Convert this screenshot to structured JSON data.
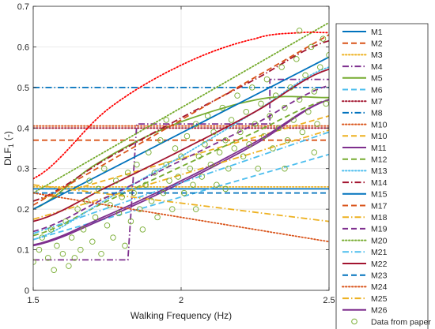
{
  "chart_data": {
    "type": "line",
    "xlabel": "Walking Frequency (Hz)",
    "ylabel_main": "DLF",
    "ylabel_sub": "1",
    "ylabel_unit": "(-)",
    "xlim": [
      1.5,
      2.5
    ],
    "ylim": [
      0,
      0.7
    ],
    "xticks": [
      1.5,
      2,
      2.5
    ],
    "xtick_labels": [
      "1.5",
      "2",
      "2.5"
    ],
    "yticks": [
      0,
      0.1,
      0.2,
      0.3,
      0.4,
      0.5,
      0.6,
      0.7
    ],
    "ytick_labels": [
      "0",
      "0.1",
      "0.2",
      "0.3",
      "0.4",
      "0.5",
      "0.6",
      "0.7"
    ],
    "grid": true,
    "legend_position": "outside-right",
    "series": [
      {
        "name": "M1",
        "color": "#0072BD",
        "style": "solid",
        "x": [
          1.5,
          2.5
        ],
        "y": [
          0.25,
          0.25
        ]
      },
      {
        "name": "M2",
        "color": "#D95319",
        "style": "dash",
        "x": [
          1.5,
          2.5
        ],
        "y": [
          0.37,
          0.37
        ]
      },
      {
        "name": "M3",
        "color": "#EDB120",
        "style": "dot",
        "x": [
          1.5,
          2.5
        ],
        "y": [
          0.255,
          0.255
        ]
      },
      {
        "name": "M4",
        "color": "#7E2F8E",
        "style": "dashdot",
        "x": [
          1.5,
          1.82,
          1.85,
          2.3,
          2.3,
          2.5
        ],
        "y": [
          0.075,
          0.075,
          0.41,
          0.41,
          0.52,
          0.52
        ]
      },
      {
        "name": "M5",
        "color": "#77AC30",
        "style": "solid",
        "x": [
          1.5,
          1.7,
          1.9,
          2.1,
          2.3,
          2.5
        ],
        "y": [
          0.2,
          0.305,
          0.385,
          0.44,
          0.475,
          0.475
        ]
      },
      {
        "name": "M6",
        "color": "#4DBEEE",
        "style": "dash",
        "x": [
          1.5,
          2.5
        ],
        "y": [
          0.125,
          0.335
        ]
      },
      {
        "name": "M7",
        "color": "#A2142F",
        "style": "dot",
        "x": [
          1.5,
          2.5
        ],
        "y": [
          0.4,
          0.4
        ]
      },
      {
        "name": "M8",
        "color": "#0072BD",
        "style": "dashdot",
        "x": [
          1.5,
          2.5
        ],
        "y": [
          0.5,
          0.5
        ]
      },
      {
        "name": "M10",
        "color": "#D95319",
        "style": "dot",
        "x": [
          1.5,
          2.5
        ],
        "y": [
          0.405,
          0.405
        ]
      },
      {
        "name": "M10",
        "color": "#EDB120",
        "style": "dash",
        "x": [
          1.5,
          2.5
        ],
        "y": [
          0.22,
          0.43
        ]
      },
      {
        "name": "M11",
        "color": "#7E2F8E",
        "style": "solid",
        "x": [
          1.5,
          1.75,
          2.0,
          2.25,
          2.5
        ],
        "y": [
          0.11,
          0.18,
          0.265,
          0.36,
          0.47
        ]
      },
      {
        "name": "M12",
        "color": "#77AC30",
        "style": "dash",
        "x": [
          1.5,
          1.75,
          2.0,
          2.25,
          2.5
        ],
        "y": [
          0.135,
          0.22,
          0.305,
          0.39,
          0.47
        ]
      },
      {
        "name": "M13",
        "color": "#4DBEEE",
        "style": "dot",
        "x": [
          1.5,
          1.75,
          2.0,
          2.25,
          2.5
        ],
        "y": [
          0.125,
          0.225,
          0.33,
          0.44,
          0.55
        ]
      },
      {
        "name": "M14",
        "color": "#A2142F",
        "style": "dashdot",
        "x": [
          1.5,
          1.75,
          2.0,
          2.25,
          2.5
        ],
        "y": [
          0.22,
          0.325,
          0.425,
          0.52,
          0.615
        ]
      },
      {
        "name": "M15",
        "color": "#0072BD",
        "style": "solid",
        "x": [
          1.5,
          2.5
        ],
        "y": [
          0.2,
          0.575
        ]
      },
      {
        "name": "M17",
        "color": "#D95319",
        "style": "dash",
        "x": [
          1.5,
          2.5
        ],
        "y": [
          0.21,
          0.63
        ]
      },
      {
        "name": "M18",
        "color": "#EDB120",
        "style": "dashdot",
        "x": [
          1.5,
          2.5
        ],
        "y": [
          0.175,
          0.395
        ]
      },
      {
        "name": "M19",
        "color": "#7E2F8E",
        "style": "dash",
        "x": [
          1.5,
          1.75,
          2.0,
          2.25,
          2.5
        ],
        "y": [
          0.145,
          0.23,
          0.32,
          0.41,
          0.505
        ]
      },
      {
        "name": "M20",
        "color": "#77AC30",
        "style": "dot",
        "x": [
          1.5,
          2.5
        ],
        "y": [
          0.24,
          0.66
        ]
      },
      {
        "name": "M21",
        "color": "#4DBEEE",
        "style": "dashdot",
        "x": [
          1.5,
          2.5
        ],
        "y": [
          0.14,
          0.39
        ]
      },
      {
        "name": "M22",
        "color": "#A2142F",
        "style": "solid",
        "x": [
          1.5,
          1.75,
          2.0,
          2.25,
          2.5
        ],
        "y": [
          0.17,
          0.255,
          0.345,
          0.44,
          0.545
        ]
      },
      {
        "name": "M23",
        "color": "#0072BD",
        "style": "dash",
        "x": [
          1.5,
          2.5
        ],
        "y": [
          0.24,
          0.24
        ]
      },
      {
        "name": "M24",
        "color": "#D95319",
        "style": "dot",
        "x": [
          1.5,
          2.5
        ],
        "y": [
          0.24,
          0.12
        ]
      },
      {
        "name": "M25",
        "color": "#EDB120",
        "style": "dashdot",
        "x": [
          1.5,
          2.5
        ],
        "y": [
          0.26,
          0.17
        ]
      },
      {
        "name": "M26",
        "color": "#7E2F8E",
        "style": "solid",
        "x": [
          1.5,
          1.75,
          2.0,
          2.25,
          2.5
        ],
        "y": [
          0.112,
          0.185,
          0.27,
          0.365,
          0.47
        ]
      },
      {
        "name": "M9",
        "color": "#FF0000",
        "style": "dot",
        "x": [
          1.5,
          1.75,
          2.0,
          2.25,
          2.4,
          2.5
        ],
        "y": [
          0.275,
          0.445,
          0.555,
          0.62,
          0.635,
          0.635
        ],
        "in_legend": false
      }
    ],
    "scatter": {
      "name": "Data from paper",
      "color": "#77AC30",
      "points": [
        [
          1.5,
          0.07
        ],
        [
          1.52,
          0.1
        ],
        [
          1.53,
          0.13
        ],
        [
          1.55,
          0.08
        ],
        [
          1.56,
          0.15
        ],
        [
          1.58,
          0.11
        ],
        [
          1.6,
          0.09
        ],
        [
          1.61,
          0.17
        ],
        [
          1.62,
          0.06
        ],
        [
          1.63,
          0.13
        ],
        [
          1.65,
          0.2
        ],
        [
          1.66,
          0.1
        ],
        [
          1.67,
          0.15
        ],
        [
          1.68,
          0.22
        ],
        [
          1.7,
          0.12
        ],
        [
          1.71,
          0.18
        ],
        [
          1.72,
          0.25
        ],
        [
          1.73,
          0.09
        ],
        [
          1.75,
          0.16
        ],
        [
          1.76,
          0.21
        ],
        [
          1.77,
          0.13
        ],
        [
          1.78,
          0.27
        ],
        [
          1.79,
          0.19
        ],
        [
          1.8,
          0.23
        ],
        [
          1.81,
          0.11
        ],
        [
          1.82,
          0.29
        ],
        [
          1.83,
          0.17
        ],
        [
          1.84,
          0.24
        ],
        [
          1.85,
          0.31
        ],
        [
          1.86,
          0.2
        ],
        [
          1.87,
          0.15
        ],
        [
          1.88,
          0.26
        ],
        [
          1.89,
          0.34
        ],
        [
          1.9,
          0.22
        ],
        [
          1.91,
          0.29
        ],
        [
          1.92,
          0.18
        ],
        [
          1.93,
          0.37
        ],
        [
          1.94,
          0.24
        ],
        [
          1.95,
          0.31
        ],
        [
          1.96,
          0.27
        ],
        [
          1.97,
          0.2
        ],
        [
          1.98,
          0.35
        ],
        [
          1.99,
          0.28
        ],
        [
          2.0,
          0.33
        ],
        [
          2.01,
          0.24
        ],
        [
          2.02,
          0.38
        ],
        [
          2.03,
          0.3
        ],
        [
          2.04,
          0.26
        ],
        [
          2.05,
          0.41
        ],
        [
          2.06,
          0.33
        ],
        [
          2.07,
          0.28
        ],
        [
          2.08,
          0.36
        ],
        [
          2.09,
          0.43
        ],
        [
          2.1,
          0.31
        ],
        [
          2.11,
          0.39
        ],
        [
          2.12,
          0.26
        ],
        [
          2.13,
          0.34
        ],
        [
          2.14,
          0.45
        ],
        [
          2.15,
          0.37
        ],
        [
          2.16,
          0.3
        ],
        [
          2.17,
          0.42
        ],
        [
          2.18,
          0.35
        ],
        [
          2.19,
          0.48
        ],
        [
          2.2,
          0.39
        ],
        [
          2.21,
          0.33
        ],
        [
          2.22,
          0.44
        ],
        [
          2.23,
          0.36
        ],
        [
          2.24,
          0.5
        ],
        [
          2.25,
          0.41
        ],
        [
          2.26,
          0.3
        ],
        [
          2.27,
          0.46
        ],
        [
          2.28,
          0.38
        ],
        [
          2.29,
          0.52
        ],
        [
          2.3,
          0.43
        ],
        [
          2.31,
          0.35
        ],
        [
          2.32,
          0.48
        ],
        [
          2.33,
          0.4
        ],
        [
          2.34,
          0.55
        ],
        [
          2.35,
          0.45
        ],
        [
          2.36,
          0.37
        ],
        [
          2.37,
          0.5
        ],
        [
          2.38,
          0.42
        ],
        [
          2.39,
          0.57
        ],
        [
          2.4,
          0.47
        ],
        [
          2.41,
          0.39
        ],
        [
          2.42,
          0.53
        ],
        [
          2.43,
          0.44
        ],
        [
          2.44,
          0.6
        ],
        [
          2.45,
          0.49
        ],
        [
          2.46,
          0.41
        ],
        [
          2.47,
          0.55
        ],
        [
          2.48,
          0.62
        ],
        [
          2.49,
          0.46
        ],
        [
          2.5,
          0.58
        ],
        [
          1.57,
          0.05
        ],
        [
          1.64,
          0.08
        ],
        [
          1.74,
          0.3
        ],
        [
          1.69,
          0.27
        ],
        [
          1.95,
          0.42
        ],
        [
          2.05,
          0.2
        ],
        [
          2.15,
          0.25
        ],
        [
          2.35,
          0.3
        ],
        [
          2.45,
          0.34
        ],
        [
          2.4,
          0.64
        ]
      ]
    }
  }
}
